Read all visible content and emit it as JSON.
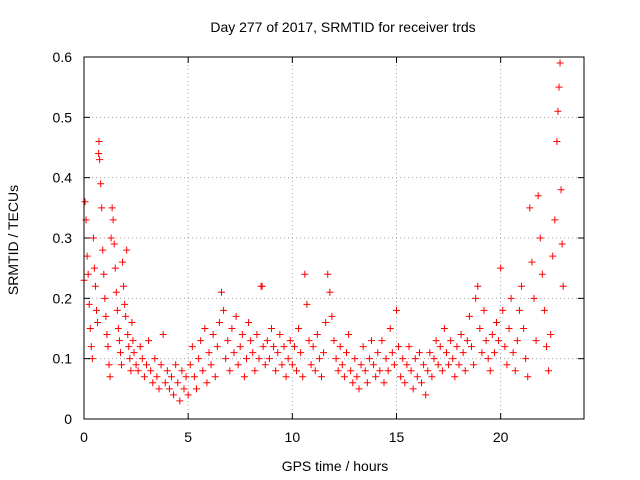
{
  "chart_data": {
    "type": "scatter",
    "title": "Day 277 of 2017, SRMTID for receiver trds",
    "xlabel": "GPS time / hours",
    "ylabel": "SRMTID / TECUs",
    "xlim": [
      0,
      24
    ],
    "ylim": [
      0,
      0.6
    ],
    "xticks": [
      0,
      5,
      10,
      15,
      20
    ],
    "yticks": [
      0,
      0.1,
      0.2,
      0.3,
      0.4,
      0.5,
      0.6
    ],
    "xtick_labels": [
      "0",
      "5",
      "10",
      "15",
      "20"
    ],
    "ytick_labels": [
      "0",
      "0.1",
      "0.2",
      "0.3",
      "0.4",
      "0.5",
      "0.6"
    ],
    "grid": true,
    "marker": "+",
    "color": "#ff0000",
    "series": [
      {
        "name": "SRMTID",
        "points": [
          [
            0.0,
            0.23
          ],
          [
            0.05,
            0.36
          ],
          [
            0.1,
            0.33
          ],
          [
            0.15,
            0.27
          ],
          [
            0.2,
            0.24
          ],
          [
            0.25,
            0.19
          ],
          [
            0.3,
            0.15
          ],
          [
            0.35,
            0.12
          ],
          [
            0.4,
            0.1
          ],
          [
            0.45,
            0.3
          ],
          [
            0.5,
            0.25
          ],
          [
            0.55,
            0.22
          ],
          [
            0.6,
            0.18
          ],
          [
            0.65,
            0.16
          ],
          [
            0.7,
            0.44
          ],
          [
            0.72,
            0.46
          ],
          [
            0.75,
            0.43
          ],
          [
            0.8,
            0.39
          ],
          [
            0.85,
            0.35
          ],
          [
            0.9,
            0.28
          ],
          [
            0.95,
            0.24
          ],
          [
            1.0,
            0.2
          ],
          [
            1.05,
            0.17
          ],
          [
            1.1,
            0.14
          ],
          [
            1.15,
            0.12
          ],
          [
            1.2,
            0.09
          ],
          [
            1.25,
            0.07
          ],
          [
            1.3,
            0.3
          ],
          [
            1.35,
            0.35
          ],
          [
            1.4,
            0.33
          ],
          [
            1.45,
            0.29
          ],
          [
            1.5,
            0.25
          ],
          [
            1.55,
            0.21
          ],
          [
            1.6,
            0.18
          ],
          [
            1.65,
            0.15
          ],
          [
            1.7,
            0.13
          ],
          [
            1.75,
            0.11
          ],
          [
            1.8,
            0.09
          ],
          [
            1.85,
            0.26
          ],
          [
            1.9,
            0.22
          ],
          [
            1.95,
            0.19
          ],
          [
            2.0,
            0.17
          ],
          [
            2.05,
            0.28
          ],
          [
            2.1,
            0.14
          ],
          [
            2.15,
            0.12
          ],
          [
            2.2,
            0.1
          ],
          [
            2.25,
            0.08
          ],
          [
            2.3,
            0.16
          ],
          [
            2.35,
            0.13
          ],
          [
            2.4,
            0.11
          ],
          [
            2.5,
            0.09
          ],
          [
            2.6,
            0.08
          ],
          [
            2.7,
            0.12
          ],
          [
            2.8,
            0.1
          ],
          [
            2.9,
            0.07
          ],
          [
            3.0,
            0.09
          ],
          [
            3.1,
            0.13
          ],
          [
            3.2,
            0.08
          ],
          [
            3.3,
            0.06
          ],
          [
            3.4,
            0.1
          ],
          [
            3.5,
            0.07
          ],
          [
            3.6,
            0.05
          ],
          [
            3.7,
            0.09
          ],
          [
            3.8,
            0.14
          ],
          [
            3.9,
            0.06
          ],
          [
            4.0,
            0.08
          ],
          [
            4.1,
            0.05
          ],
          [
            4.2,
            0.07
          ],
          [
            4.3,
            0.04
          ],
          [
            4.4,
            0.09
          ],
          [
            4.5,
            0.06
          ],
          [
            4.6,
            0.03
          ],
          [
            4.7,
            0.08
          ],
          [
            4.8,
            0.05
          ],
          [
            4.9,
            0.07
          ],
          [
            5.0,
            0.04
          ],
          [
            5.1,
            0.09
          ],
          [
            5.2,
            0.12
          ],
          [
            5.3,
            0.07
          ],
          [
            5.4,
            0.05
          ],
          [
            5.5,
            0.1
          ],
          [
            5.6,
            0.13
          ],
          [
            5.7,
            0.08
          ],
          [
            5.8,
            0.15
          ],
          [
            5.9,
            0.06
          ],
          [
            6.0,
            0.11
          ],
          [
            6.1,
            0.09
          ],
          [
            6.2,
            0.14
          ],
          [
            6.3,
            0.07
          ],
          [
            6.4,
            0.12
          ],
          [
            6.5,
            0.16
          ],
          [
            6.6,
            0.21
          ],
          [
            6.7,
            0.18
          ],
          [
            6.8,
            0.1
          ],
          [
            6.9,
            0.13
          ],
          [
            7.0,
            0.08
          ],
          [
            7.1,
            0.15
          ],
          [
            7.2,
            0.11
          ],
          [
            7.3,
            0.17
          ],
          [
            7.4,
            0.09
          ],
          [
            7.5,
            0.12
          ],
          [
            7.6,
            0.14
          ],
          [
            7.7,
            0.07
          ],
          [
            7.8,
            0.1
          ],
          [
            7.9,
            0.16
          ],
          [
            8.0,
            0.13
          ],
          [
            8.1,
            0.11
          ],
          [
            8.2,
            0.08
          ],
          [
            8.3,
            0.14
          ],
          [
            8.4,
            0.1
          ],
          [
            8.5,
            0.22
          ],
          [
            8.55,
            0.22
          ],
          [
            8.6,
            0.12
          ],
          [
            8.7,
            0.09
          ],
          [
            8.8,
            0.13
          ],
          [
            8.9,
            0.1
          ],
          [
            9.0,
            0.15
          ],
          [
            9.1,
            0.12
          ],
          [
            9.2,
            0.08
          ],
          [
            9.3,
            0.11
          ],
          [
            9.4,
            0.14
          ],
          [
            9.5,
            0.09
          ],
          [
            9.6,
            0.12
          ],
          [
            9.7,
            0.07
          ],
          [
            9.8,
            0.1
          ],
          [
            9.9,
            0.13
          ],
          [
            10.0,
            0.09
          ],
          [
            10.1,
            0.12
          ],
          [
            10.2,
            0.08
          ],
          [
            10.3,
            0.15
          ],
          [
            10.4,
            0.11
          ],
          [
            10.5,
            0.07
          ],
          [
            10.6,
            0.24
          ],
          [
            10.7,
            0.19
          ],
          [
            10.8,
            0.13
          ],
          [
            10.9,
            0.09
          ],
          [
            11.0,
            0.12
          ],
          [
            11.1,
            0.08
          ],
          [
            11.2,
            0.14
          ],
          [
            11.3,
            0.1
          ],
          [
            11.4,
            0.07
          ],
          [
            11.5,
            0.11
          ],
          [
            11.6,
            0.16
          ],
          [
            11.7,
            0.24
          ],
          [
            11.8,
            0.21
          ],
          [
            11.9,
            0.17
          ],
          [
            12.0,
            0.13
          ],
          [
            12.1,
            0.1
          ],
          [
            12.2,
            0.08
          ],
          [
            12.3,
            0.12
          ],
          [
            12.4,
            0.09
          ],
          [
            12.5,
            0.07
          ],
          [
            12.6,
            0.11
          ],
          [
            12.7,
            0.14
          ],
          [
            12.8,
            0.08
          ],
          [
            12.9,
            0.06
          ],
          [
            13.0,
            0.1
          ],
          [
            13.1,
            0.07
          ],
          [
            13.2,
            0.05
          ],
          [
            13.3,
            0.09
          ],
          [
            13.4,
            0.12
          ],
          [
            13.5,
            0.08
          ],
          [
            13.6,
            0.06
          ],
          [
            13.7,
            0.1
          ],
          [
            13.8,
            0.13
          ],
          [
            13.9,
            0.09
          ],
          [
            14.0,
            0.07
          ],
          [
            14.1,
            0.11
          ],
          [
            14.2,
            0.08
          ],
          [
            14.3,
            0.13
          ],
          [
            14.4,
            0.06
          ],
          [
            14.5,
            0.1
          ],
          [
            14.6,
            0.08
          ],
          [
            14.7,
            0.15
          ],
          [
            14.8,
            0.11
          ],
          [
            14.9,
            0.09
          ],
          [
            15.0,
            0.18
          ],
          [
            15.1,
            0.12
          ],
          [
            15.2,
            0.07
          ],
          [
            15.3,
            0.1
          ],
          [
            15.4,
            0.06
          ],
          [
            15.5,
            0.09
          ],
          [
            15.6,
            0.12
          ],
          [
            15.7,
            0.08
          ],
          [
            15.8,
            0.05
          ],
          [
            15.9,
            0.1
          ],
          [
            16.0,
            0.07
          ],
          [
            16.1,
            0.11
          ],
          [
            16.2,
            0.06
          ],
          [
            16.3,
            0.09
          ],
          [
            16.4,
            0.04
          ],
          [
            16.5,
            0.08
          ],
          [
            16.6,
            0.11
          ],
          [
            16.7,
            0.07
          ],
          [
            16.8,
            0.1
          ],
          [
            16.9,
            0.13
          ],
          [
            17.0,
            0.09
          ],
          [
            17.1,
            0.12
          ],
          [
            17.2,
            0.08
          ],
          [
            17.3,
            0.15
          ],
          [
            17.4,
            0.11
          ],
          [
            17.5,
            0.09
          ],
          [
            17.6,
            0.13
          ],
          [
            17.7,
            0.1
          ],
          [
            17.8,
            0.07
          ],
          [
            17.9,
            0.12
          ],
          [
            18.0,
            0.09
          ],
          [
            18.1,
            0.14
          ],
          [
            18.2,
            0.11
          ],
          [
            18.3,
            0.08
          ],
          [
            18.4,
            0.13
          ],
          [
            18.5,
            0.17
          ],
          [
            18.6,
            0.12
          ],
          [
            18.7,
            0.09
          ],
          [
            18.8,
            0.2
          ],
          [
            18.9,
            0.22
          ],
          [
            19.0,
            0.15
          ],
          [
            19.1,
            0.11
          ],
          [
            19.2,
            0.18
          ],
          [
            19.3,
            0.13
          ],
          [
            19.4,
            0.1
          ],
          [
            19.5,
            0.08
          ],
          [
            19.6,
            0.14
          ],
          [
            19.7,
            0.11
          ],
          [
            19.8,
            0.16
          ],
          [
            19.9,
            0.13
          ],
          [
            20.0,
            0.25
          ],
          [
            20.1,
            0.18
          ],
          [
            20.2,
            0.12
          ],
          [
            20.3,
            0.09
          ],
          [
            20.4,
            0.15
          ],
          [
            20.5,
            0.2
          ],
          [
            20.6,
            0.11
          ],
          [
            20.7,
            0.08
          ],
          [
            20.8,
            0.13
          ],
          [
            20.9,
            0.18
          ],
          [
            21.0,
            0.22
          ],
          [
            21.1,
            0.15
          ],
          [
            21.2,
            0.1
          ],
          [
            21.3,
            0.07
          ],
          [
            21.4,
            0.35
          ],
          [
            21.5,
            0.26
          ],
          [
            21.6,
            0.2
          ],
          [
            21.7,
            0.13
          ],
          [
            21.8,
            0.37
          ],
          [
            21.9,
            0.3
          ],
          [
            22.0,
            0.24
          ],
          [
            22.1,
            0.18
          ],
          [
            22.2,
            0.12
          ],
          [
            22.3,
            0.08
          ],
          [
            22.4,
            0.14
          ],
          [
            22.5,
            0.27
          ],
          [
            22.6,
            0.33
          ],
          [
            22.7,
            0.46
          ],
          [
            22.75,
            0.51
          ],
          [
            22.8,
            0.55
          ],
          [
            22.85,
            0.59
          ],
          [
            22.9,
            0.38
          ],
          [
            22.95,
            0.29
          ],
          [
            23.0,
            0.22
          ]
        ]
      }
    ]
  }
}
